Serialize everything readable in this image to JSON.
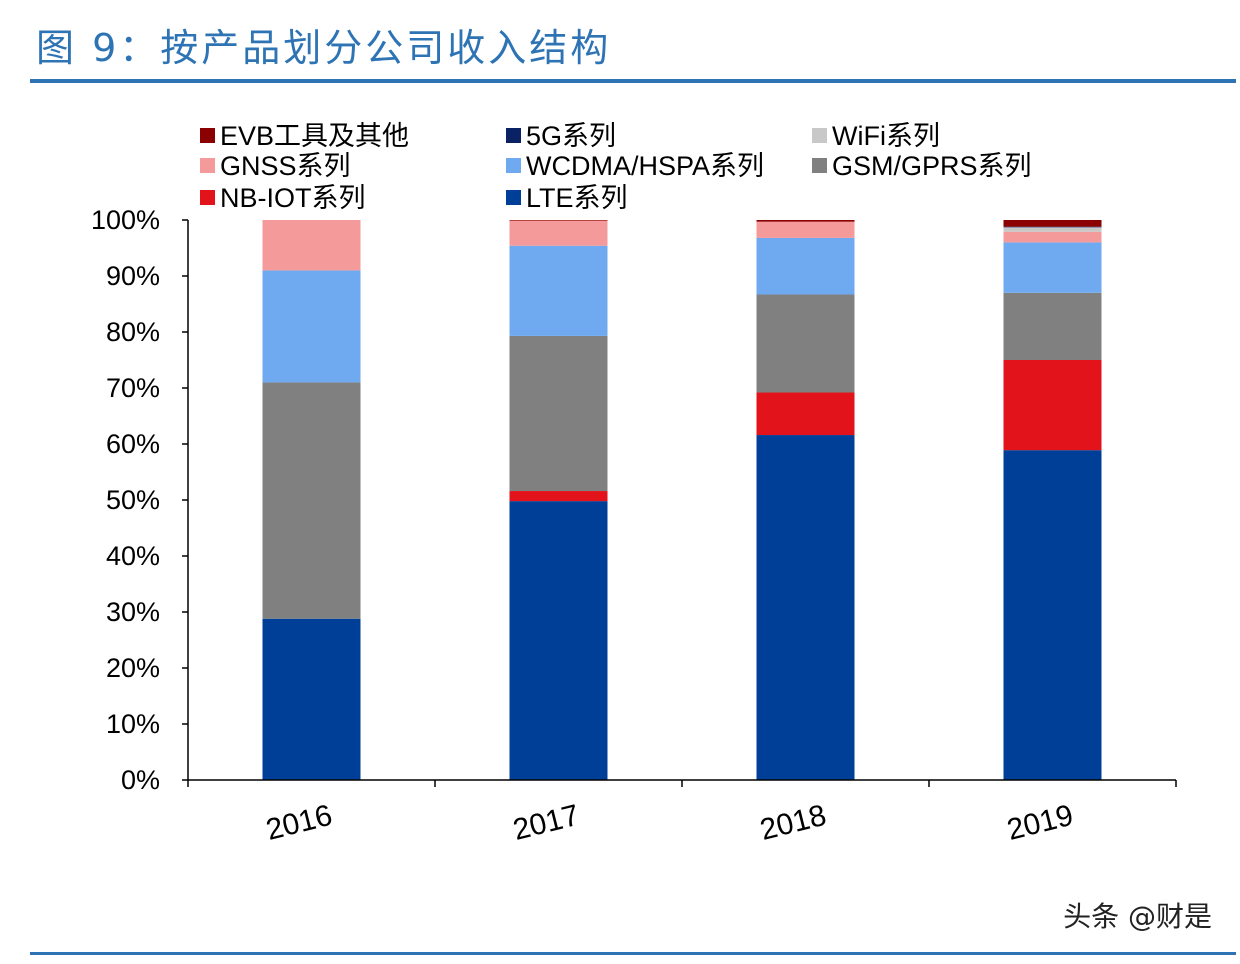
{
  "figure": {
    "title": "图 9：按产品划分公司收入结构",
    "watermark": "头条 @财是"
  },
  "chart_data": {
    "type": "bar",
    "stacked": true,
    "title": "",
    "xlabel": "",
    "ylabel": "",
    "ylim": [
      0,
      100
    ],
    "y_unit": "%",
    "y_ticks": [
      "0%",
      "10%",
      "20%",
      "30%",
      "40%",
      "50%",
      "60%",
      "70%",
      "80%",
      "90%",
      "100%"
    ],
    "categories": [
      "2016",
      "2017",
      "2018",
      "2019"
    ],
    "legend_position": "top",
    "legend_order": [
      "EVB工具及其他",
      "5G系列",
      "WiFi系列",
      "GNSS系列",
      "WCDMA/HSPA系列",
      "GSM/GPRS系列",
      "NB-IOT系列",
      "LTE系列"
    ],
    "series": [
      {
        "name": "LTE系列",
        "color": "#003f98",
        "values": [
          28.8,
          49.8,
          61.6,
          58.9
        ]
      },
      {
        "name": "NB-IOT系列",
        "color": "#e2131a",
        "values": [
          0,
          1.8,
          7.6,
          16.1
        ]
      },
      {
        "name": "GSM/GPRS系列",
        "color": "#808080",
        "values": [
          42.2,
          27.7,
          17.5,
          12.0
        ]
      },
      {
        "name": "WCDMA/HSPA系列",
        "color": "#6faaf0",
        "values": [
          20.0,
          16.1,
          10.1,
          9.0
        ]
      },
      {
        "name": "GNSS系列",
        "color": "#f49a9a",
        "values": [
          9.0,
          4.5,
          2.9,
          1.9
        ]
      },
      {
        "name": "WiFi系列",
        "color": "#c8c8c8",
        "values": [
          0,
          0,
          0,
          0.8
        ]
      },
      {
        "name": "5G系列",
        "color": "#0a2263",
        "values": [
          0,
          0,
          0,
          0.1
        ]
      },
      {
        "name": "EVB工具及其他",
        "color": "#8b0000",
        "values": [
          0,
          0.1,
          0.3,
          1.2
        ]
      }
    ]
  }
}
